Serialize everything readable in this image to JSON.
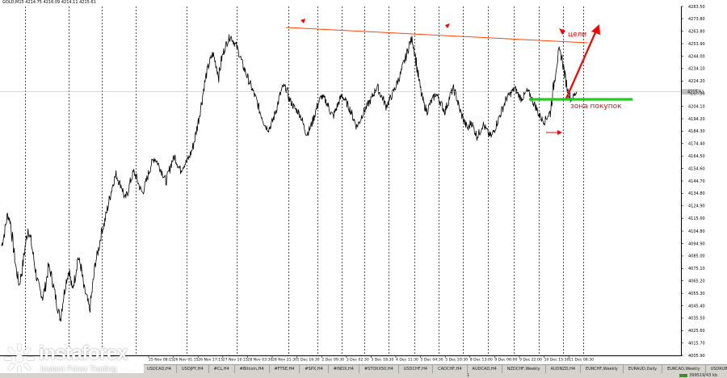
{
  "window": {
    "symbol_info": "GOLD,M15  4214.75 4216.09 4214.11 4215.61"
  },
  "colors": {
    "background": "#ffffff",
    "price_line": "#000000",
    "trendline": "#ff4500",
    "support": "#22cc22",
    "annotation": "#ff0000",
    "separator": "#000000",
    "current_price_tag": "#c0c0c0"
  },
  "chart_data": {
    "type": "line",
    "title": "GOLD,M15",
    "xlabel": "",
    "ylabel": "",
    "ylim": [
      4005.9,
      4283.5
    ],
    "grid": false,
    "current_price": "4215.61",
    "y_ticks": [
      "4283.50",
      "4273.80",
      "4263.80",
      "4253.90",
      "4244.00",
      "4234.10",
      "4224.20",
      "4214.30",
      "4204.10",
      "4194.20",
      "4184.30",
      "4174.40",
      "4164.50",
      "4154.60",
      "4144.70",
      "4134.80",
      "4124.90",
      "4115.00",
      "4104.80",
      "4094.90",
      "4085.00",
      "4075.10",
      "4065.20",
      "4055.30",
      "4045.40",
      "4035.50",
      "4025.60",
      "4015.70",
      "4005.90"
    ],
    "x_ticks": [
      "25 Nov 08:15",
      "26 Nov 01:15",
      "26 Nov 17:15",
      "27 Nov 10:15",
      "28 Nov 03:30",
      "28 Nov 21:30",
      "1 Dec 16:30",
      "2 Dec 09:30",
      "3 Dec 02:30",
      "3 Dec 18:30",
      "4 Dec 11:30",
      "5 Dec 04:30",
      "5 Dec 20:30",
      "8 Dec 13:00",
      "9 Dec 06:00",
      "9 Dec 22:00",
      "10 Dec 15:30",
      "11 Dec 08:30"
    ],
    "series": [
      {
        "name": "",
        "approx_close": [
          4093,
          4104,
          4118,
          4112,
          4092,
          4074,
          4062,
          4074,
          4092,
          4107,
          4097,
          4082,
          4067,
          4058,
          4052,
          4062,
          4077,
          4069,
          4057,
          4045,
          4035,
          4051,
          4065,
          4074,
          4058,
          4068,
          4084,
          4077,
          4060,
          4052,
          4042,
          4060,
          4080,
          4090,
          4104,
          4111,
          4122,
          4133,
          4143,
          4150,
          4144,
          4140,
          4130,
          4136,
          4145,
          4152,
          4147,
          4140,
          4135,
          4142,
          4150,
          4158,
          4163,
          4160,
          4155,
          4150,
          4144,
          4152,
          4160,
          4164,
          4158,
          4153,
          4157,
          4160,
          4164,
          4170,
          4180,
          4192,
          4205,
          4220,
          4232,
          4240,
          4246,
          4238,
          4228,
          4242,
          4250,
          4256,
          4260,
          4256,
          4252,
          4246,
          4238,
          4232,
          4226,
          4220,
          4214,
          4208,
          4200,
          4194,
          4188,
          4186,
          4190,
          4197,
          4205,
          4214,
          4220,
          4218,
          4210,
          4206,
          4202,
          4200,
          4196,
          4188,
          4182,
          4186,
          4192,
          4200,
          4207,
          4212,
          4210,
          4206,
          4200,
          4196,
          4202,
          4208,
          4213,
          4209,
          4205,
          4200,
          4194,
          4188,
          4192,
          4198,
          4202,
          4206,
          4210,
          4215,
          4220,
          4214,
          4210,
          4204,
          4208,
          4213,
          4218,
          4224,
          4230,
          4238,
          4245,
          4254,
          4258,
          4244,
          4228,
          4214,
          4205,
          4200,
          4206,
          4210,
          4214,
          4210,
          4205,
          4200,
          4206,
          4214,
          4218,
          4212,
          4202,
          4196,
          4190,
          4186,
          4192,
          4186,
          4180,
          4184,
          4190,
          4186,
          4182,
          4180,
          4186,
          4192,
          4198,
          4204,
          4210,
          4213,
          4216,
          4218,
          4214,
          4210,
          4212,
          4216,
          4214,
          4208,
          4204,
          4198,
          4194,
          4192,
          4196,
          4200,
          4218,
          4236,
          4248,
          4242,
          4228,
          4216,
          4210,
          4212,
          4216
        ]
      }
    ],
    "annotations": {
      "targets_label": "цели",
      "buy_zone_label": "зона покупок"
    }
  },
  "tabs": [
    "USDCAD,H4",
    "USDJPY,H4",
    "#CL,H4",
    "#Bitcoin,H4",
    "#FTSE,H4",
    "#SPX,H4",
    "#INDX,H4",
    "#STOXX50,H4",
    "USDCHF,H4",
    "CADCHF,H4",
    "AUDCAD,H4",
    "NZDCHF,Weekly",
    "AUDNZD,H4",
    "EURCHF,Weekly",
    "EURAUD,Daily",
    "EURCAD,Weekly",
    "USDRUB,Daily"
  ],
  "active_tab": "",
  "status": {
    "num": "1",
    "connection": "399519/43 kb"
  },
  "logo": {
    "brand": "instaforex",
    "tagline": "Instant Forex Trading"
  }
}
